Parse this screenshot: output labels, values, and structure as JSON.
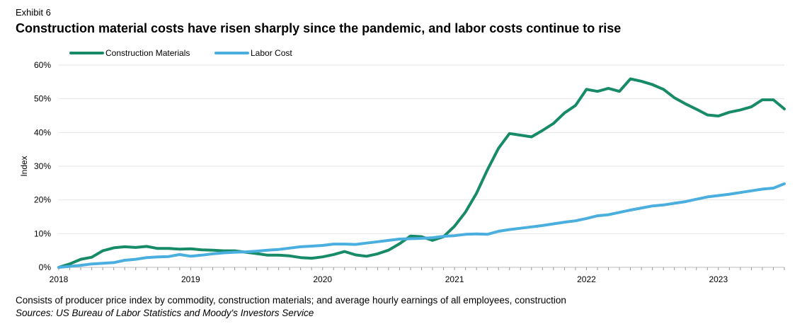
{
  "exhibit": "Exhibit 6",
  "title": "Construction material costs have risen sharply since the pandemic, and labor costs continue to rise",
  "footnote": "Consists of producer price index by commodity, construction materials; and average hourly earnings of all employees, construction",
  "sources": "Sources: US Bureau of Labor Statistics and Moody's Investors Service",
  "chart_data": {
    "type": "line",
    "title": "",
    "xlabel": "",
    "ylabel": "Index",
    "ylim": [
      0,
      60
    ],
    "yticks": [
      "0%",
      "10%",
      "20%",
      "30%",
      "40%",
      "50%",
      "60%"
    ],
    "xticks": [
      "2018",
      "2019",
      "2020",
      "2021",
      "2022",
      "2023"
    ],
    "grid": "horizontal",
    "legend": "top-left",
    "frequency": "monthly",
    "x": [
      "2018-01",
      "2018-02",
      "2018-03",
      "2018-04",
      "2018-05",
      "2018-06",
      "2018-07",
      "2018-08",
      "2018-09",
      "2018-10",
      "2018-11",
      "2018-12",
      "2019-01",
      "2019-02",
      "2019-03",
      "2019-04",
      "2019-05",
      "2019-06",
      "2019-07",
      "2019-08",
      "2019-09",
      "2019-10",
      "2019-11",
      "2019-12",
      "2020-01",
      "2020-02",
      "2020-03",
      "2020-04",
      "2020-05",
      "2020-06",
      "2020-07",
      "2020-08",
      "2020-09",
      "2020-10",
      "2020-11",
      "2020-12",
      "2021-01",
      "2021-02",
      "2021-03",
      "2021-04",
      "2021-05",
      "2021-06",
      "2021-07",
      "2021-08",
      "2021-09",
      "2021-10",
      "2021-11",
      "2021-12",
      "2022-01",
      "2022-02",
      "2022-03",
      "2022-04",
      "2022-05",
      "2022-06",
      "2022-07",
      "2022-08",
      "2022-09",
      "2022-10",
      "2022-11",
      "2022-12",
      "2023-01",
      "2023-02",
      "2023-03",
      "2023-04",
      "2023-05",
      "2023-06",
      "2023-07"
    ],
    "series": [
      {
        "name": "Construction Materials",
        "color": "#178a68",
        "values": [
          0,
          1.0,
          2.4,
          3.0,
          4.9,
          5.8,
          6.1,
          5.9,
          6.2,
          5.6,
          5.6,
          5.4,
          5.5,
          5.2,
          5.1,
          4.9,
          4.9,
          4.5,
          4.1,
          3.6,
          3.6,
          3.4,
          2.9,
          2.7,
          3.1,
          3.8,
          4.7,
          3.7,
          3.3,
          4.0,
          5.1,
          7.0,
          9.3,
          9.1,
          8.0,
          9.1,
          12.2,
          16.4,
          22.0,
          29.0,
          35.3,
          39.7,
          39.2,
          38.7,
          40.6,
          42.7,
          45.8,
          48.0,
          52.8,
          52.2,
          53.1,
          52.2,
          55.9,
          55.2,
          54.2,
          52.8,
          50.3,
          48.5,
          46.9,
          45.2,
          44.9,
          46.0,
          46.7,
          47.6,
          49.7,
          49.7,
          47.0
        ]
      },
      {
        "name": "Labor Cost",
        "color": "#4aaedf",
        "values": [
          0,
          0.3,
          0.6,
          1.0,
          1.2,
          1.4,
          2.1,
          2.4,
          2.9,
          3.1,
          3.2,
          3.8,
          3.3,
          3.6,
          4.0,
          4.3,
          4.5,
          4.6,
          4.8,
          5.1,
          5.3,
          5.7,
          6.1,
          6.3,
          6.5,
          6.9,
          6.9,
          6.8,
          7.2,
          7.6,
          8.0,
          8.4,
          8.5,
          8.6,
          8.8,
          9.2,
          9.4,
          9.8,
          9.9,
          9.8,
          10.7,
          11.2,
          11.6,
          12.0,
          12.4,
          12.9,
          13.4,
          13.8,
          14.5,
          15.3,
          15.6,
          16.3,
          17.0,
          17.6,
          18.2,
          18.5,
          19.0,
          19.5,
          20.2,
          20.9,
          21.3,
          21.7,
          22.2,
          22.7,
          23.2,
          23.5,
          24.8
        ]
      }
    ]
  }
}
